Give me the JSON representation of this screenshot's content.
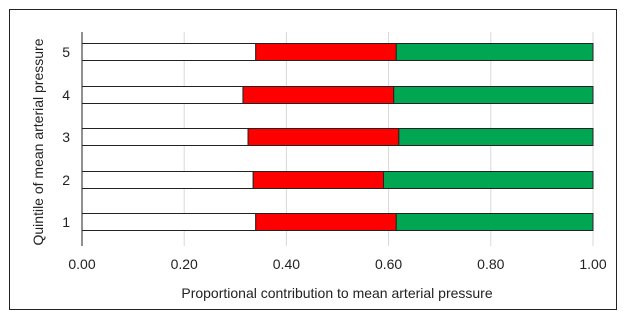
{
  "chart_data": {
    "type": "bar",
    "orientation": "horizontal",
    "stacked": true,
    "categories": [
      "1",
      "2",
      "3",
      "4",
      "5"
    ],
    "series": [
      {
        "color": "#ffffff",
        "values": [
          0.34,
          0.335,
          0.325,
          0.315,
          0.34
        ]
      },
      {
        "color": "#ff0000",
        "values": [
          0.275,
          0.255,
          0.295,
          0.295,
          0.275
        ]
      },
      {
        "color": "#00a651",
        "values": [
          0.385,
          0.41,
          0.38,
          0.39,
          0.385
        ]
      }
    ],
    "xlabel": "Proportional contribution to mean arterial pressure",
    "ylabel": "Quintile of mean arterial pressure",
    "xlim": [
      0,
      1
    ],
    "xticks": [
      "0.00",
      "0.20",
      "0.40",
      "0.60",
      "0.80",
      "1.00"
    ],
    "grid": "vertical",
    "legend": "none"
  }
}
